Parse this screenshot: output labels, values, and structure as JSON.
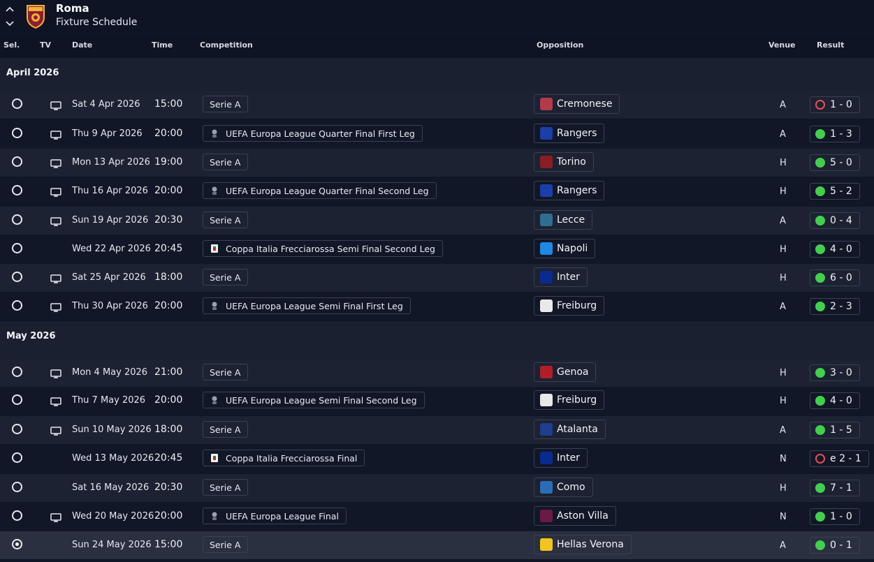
{
  "header": {
    "team": "Roma",
    "subtitle": "Fixture Schedule",
    "up_icon": "chevron-up-icon",
    "down_icon": "chevron-down-icon"
  },
  "columns": {
    "sel": "Sel.",
    "tv": "TV",
    "date": "Date",
    "time": "Time",
    "competition": "Competition",
    "opposition": "Opposition",
    "venue": "Venue",
    "result": "Result"
  },
  "colors": {
    "win": "#3fd14a",
    "loss": "#ef4b58",
    "background": "#111626",
    "row_alt": "#1c2231"
  },
  "months": [
    {
      "label": "April 2026",
      "fixtures": [
        {
          "date": "Sat 4 Apr 2026",
          "time": "15:00",
          "tv": true,
          "competition": "Serie A",
          "comp_icon": "",
          "opposition": "Cremonese",
          "opp_icon": "cremonese",
          "venue": "A",
          "result": "1 - 0",
          "outcome": "loss"
        },
        {
          "date": "Thu 9 Apr 2026",
          "time": "20:00",
          "tv": true,
          "competition": "UEFA Europa League Quarter Final First Leg",
          "comp_icon": "uefa-trophy",
          "opposition": "Rangers",
          "opp_icon": "rangers",
          "venue": "A",
          "result": "1 - 3",
          "outcome": "win"
        },
        {
          "date": "Mon 13 Apr 2026",
          "time": "19:00",
          "tv": true,
          "competition": "Serie A",
          "comp_icon": "",
          "opposition": "Torino",
          "opp_icon": "torino",
          "venue": "H",
          "result": "5 - 0",
          "outcome": "win"
        },
        {
          "date": "Thu 16 Apr 2026",
          "time": "20:00",
          "tv": true,
          "competition": "UEFA Europa League Quarter Final Second Leg",
          "comp_icon": "uefa-trophy",
          "opposition": "Rangers",
          "opp_icon": "rangers",
          "venue": "H",
          "result": "5 - 2",
          "outcome": "win"
        },
        {
          "date": "Sun 19 Apr 2026",
          "time": "20:30",
          "tv": true,
          "competition": "Serie A",
          "comp_icon": "",
          "opposition": "Lecce",
          "opp_icon": "lecce",
          "venue": "A",
          "result": "0 - 4",
          "outcome": "win"
        },
        {
          "date": "Wed 22 Apr 2026",
          "time": "20:45",
          "tv": false,
          "competition": "Coppa Italia Frecciarossa Semi Final Second Leg",
          "comp_icon": "coppa-italia",
          "opposition": "Napoli",
          "opp_icon": "napoli",
          "venue": "H",
          "result": "4 - 0",
          "outcome": "win"
        },
        {
          "date": "Sat 25 Apr 2026",
          "time": "18:00",
          "tv": true,
          "competition": "Serie A",
          "comp_icon": "",
          "opposition": "Inter",
          "opp_icon": "inter",
          "venue": "H",
          "result": "6 - 0",
          "outcome": "win"
        },
        {
          "date": "Thu 30 Apr 2026",
          "time": "20:00",
          "tv": true,
          "competition": "UEFA Europa League Semi Final First Leg",
          "comp_icon": "uefa-trophy",
          "opposition": "Freiburg",
          "opp_icon": "freiburg",
          "venue": "A",
          "result": "2 - 3",
          "outcome": "win"
        }
      ]
    },
    {
      "label": "May 2026",
      "fixtures": [
        {
          "date": "Mon 4 May 2026",
          "time": "21:00",
          "tv": true,
          "competition": "Serie A",
          "comp_icon": "",
          "opposition": "Genoa",
          "opp_icon": "genoa",
          "venue": "H",
          "result": "3 - 0",
          "outcome": "win"
        },
        {
          "date": "Thu 7 May 2026",
          "time": "20:00",
          "tv": true,
          "competition": "UEFA Europa League Semi Final Second Leg",
          "comp_icon": "uefa-trophy",
          "opposition": "Freiburg",
          "opp_icon": "freiburg",
          "venue": "H",
          "result": "4 - 0",
          "outcome": "win"
        },
        {
          "date": "Sun 10 May 2026",
          "time": "18:00",
          "tv": true,
          "competition": "Serie A",
          "comp_icon": "",
          "opposition": "Atalanta",
          "opp_icon": "atalanta",
          "venue": "A",
          "result": "1 - 5",
          "outcome": "win"
        },
        {
          "date": "Wed 13 May 2026",
          "time": "20:45",
          "tv": false,
          "competition": "Coppa Italia Frecciarossa Final",
          "comp_icon": "coppa-italia",
          "opposition": "Inter",
          "opp_icon": "inter",
          "venue": "N",
          "result": "e 2 - 1",
          "outcome": "loss"
        },
        {
          "date": "Sat 16 May 2026",
          "time": "20:30",
          "tv": false,
          "competition": "Serie A",
          "comp_icon": "",
          "opposition": "Como",
          "opp_icon": "como",
          "venue": "H",
          "result": "7 - 1",
          "outcome": "win"
        },
        {
          "date": "Wed 20 May 2026",
          "time": "20:00",
          "tv": true,
          "competition": "UEFA Europa League Final",
          "comp_icon": "uefa-trophy",
          "opposition": "Aston Villa",
          "opp_icon": "aston-villa",
          "venue": "N",
          "result": "1 - 0",
          "outcome": "win"
        },
        {
          "date": "Sun 24 May 2026",
          "time": "15:00",
          "tv": false,
          "competition": "Serie A",
          "comp_icon": "",
          "opposition": "Hellas Verona",
          "opp_icon": "hellas-verona",
          "venue": "A",
          "result": "0 - 1",
          "outcome": "win",
          "selected": true
        }
      ]
    }
  ]
}
